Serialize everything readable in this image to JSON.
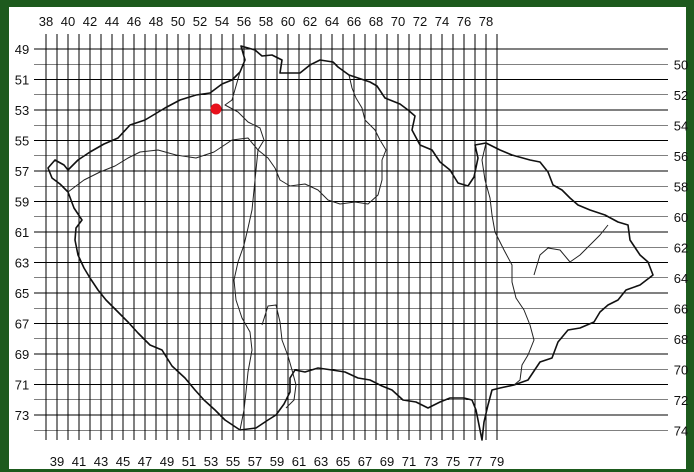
{
  "map": {
    "top_labels": [
      "38",
      "40",
      "42",
      "44",
      "46",
      "48",
      "50",
      "52",
      "54",
      "56",
      "58",
      "60",
      "62",
      "64",
      "66",
      "68",
      "70",
      "72",
      "74",
      "76",
      "78"
    ],
    "bottom_labels": [
      "39",
      "41",
      "43",
      "45",
      "47",
      "49",
      "51",
      "53",
      "55",
      "57",
      "59",
      "61",
      "63",
      "65",
      "67",
      "69",
      "71",
      "73",
      "75",
      "77",
      "79"
    ],
    "left_labels": [
      "49",
      "51",
      "53",
      "55",
      "57",
      "59",
      "61",
      "63",
      "65",
      "67",
      "69",
      "71",
      "73"
    ],
    "right_labels": [
      "50",
      "52",
      "54",
      "56",
      "58",
      "60",
      "62",
      "64",
      "66",
      "68",
      "70",
      "72",
      "74"
    ],
    "marker": {
      "column": 53,
      "row": 53,
      "color": "#e8111c"
    },
    "colors": {
      "frame": "#1d5a1d",
      "panel": "#ffffff",
      "grid": "#000000",
      "border": "#111111"
    }
  }
}
